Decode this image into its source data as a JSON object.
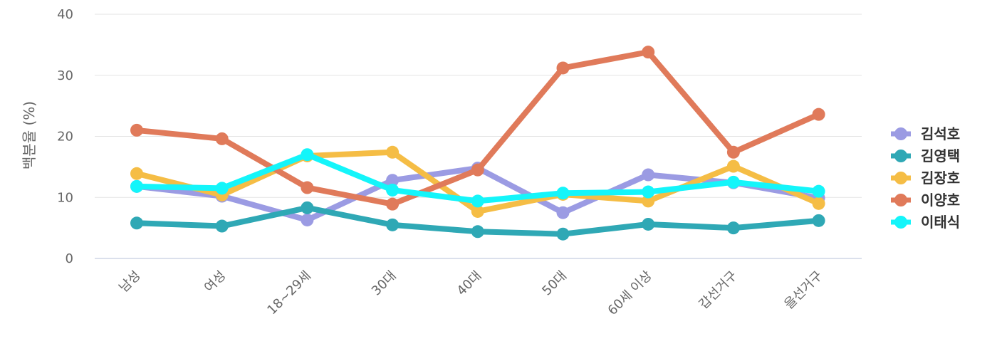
{
  "chart_data": {
    "type": "line",
    "title": "",
    "xlabel": "",
    "ylabel": "백분율 (%)",
    "ylim": [
      0,
      40
    ],
    "yticks": [
      0,
      10,
      20,
      30,
      40
    ],
    "grid": true,
    "legend_position": "right",
    "categories": [
      "남성",
      "여성",
      "18~29세",
      "30대",
      "40대",
      "50대",
      "60세 이상",
      "갑선거구",
      "을선거구"
    ],
    "series": [
      {
        "name": "김석호",
        "color": "#9b9be3",
        "values": [
          11.8,
          10.2,
          6.3,
          12.8,
          14.8,
          7.5,
          13.7,
          12.4,
          9.9
        ]
      },
      {
        "name": "김영택",
        "color": "#2fa8b5",
        "values": [
          5.8,
          5.3,
          8.3,
          5.5,
          4.4,
          4.0,
          5.6,
          5.0,
          6.2
        ]
      },
      {
        "name": "김장호",
        "color": "#f5bd45",
        "values": [
          13.9,
          10.4,
          16.8,
          17.4,
          7.7,
          10.5,
          9.4,
          15.1,
          9.0
        ]
      },
      {
        "name": "이양호",
        "color": "#e07a5a",
        "values": [
          21.0,
          19.6,
          11.6,
          8.9,
          14.5,
          31.2,
          33.8,
          17.4,
          23.6
        ]
      },
      {
        "name": "이태식",
        "color": "#14f5fa",
        "values": [
          11.8,
          11.5,
          17.0,
          11.2,
          9.4,
          10.7,
          10.9,
          12.5,
          11.0
        ]
      }
    ]
  }
}
